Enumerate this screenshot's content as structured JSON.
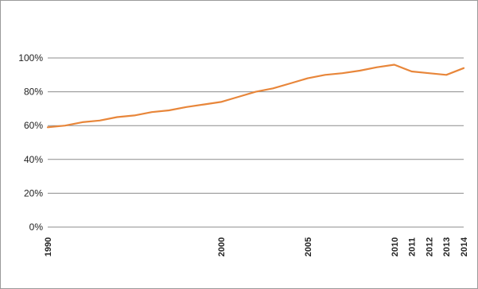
{
  "chart_data": {
    "type": "line",
    "title": "",
    "xlabel": "",
    "ylabel": "",
    "x": [
      1990,
      1991,
      1992,
      1993,
      1994,
      1995,
      1996,
      1997,
      1998,
      1999,
      2000,
      2001,
      2002,
      2003,
      2004,
      2005,
      2006,
      2007,
      2008,
      2009,
      2010,
      2011,
      2012,
      2013,
      2014
    ],
    "series": [
      {
        "color": "#e8863a",
        "values": [
          59,
          60,
          62,
          63,
          65,
          66,
          68,
          69,
          71,
          72.5,
          74,
          77,
          80,
          82,
          85,
          88,
          90,
          91,
          92.5,
          94.5,
          96,
          92,
          91,
          90,
          94
        ]
      }
    ],
    "xlim": [
      1990,
      2014
    ],
    "ylim": [
      0,
      100
    ],
    "x_tick_labels": [
      "1990",
      "2000",
      "2005",
      "2010",
      "2011",
      "2012",
      "2013",
      "2014"
    ],
    "y_tick_labels": [
      "0%",
      "20%",
      "40%",
      "60%",
      "80%",
      "100%"
    ],
    "grid": true,
    "legend": "none"
  }
}
